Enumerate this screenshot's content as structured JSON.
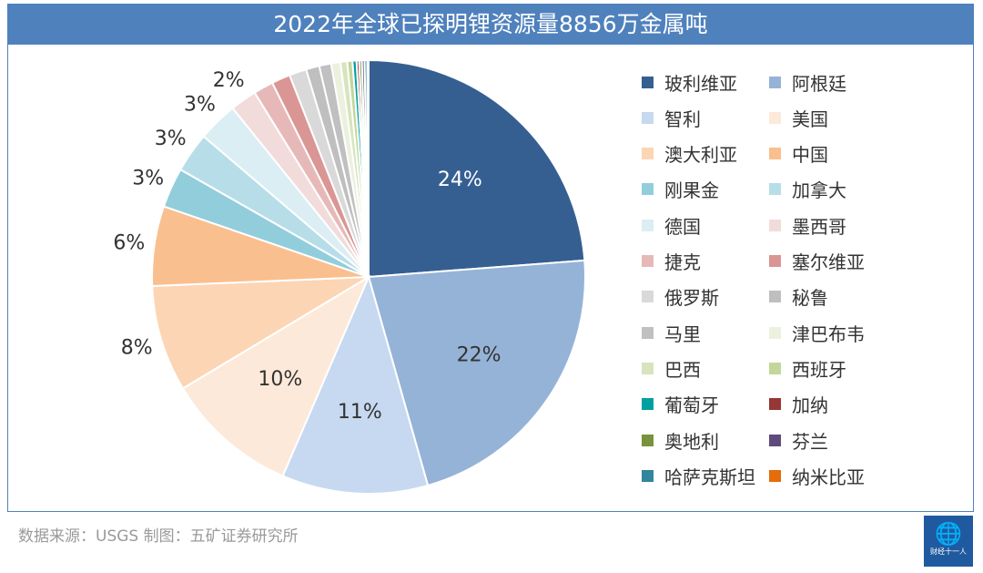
{
  "title": "2022年全球已探明锂资源量8856万金属吨",
  "source": "数据来源：USGS 制图：五矿证券研究所",
  "logo_text": "财经十一人",
  "chart_data": {
    "type": "pie",
    "title": "2022年全球已探明锂资源量8856万金属吨",
    "legend_position": "right",
    "slices": [
      {
        "name": "玻利维亚",
        "value": 24,
        "label": "24%",
        "color": "#355f91"
      },
      {
        "name": "阿根廷",
        "value": 22,
        "label": "22%",
        "color": "#95b3d7"
      },
      {
        "name": "智利",
        "value": 11,
        "label": "11%",
        "color": "#c6d9f0"
      },
      {
        "name": "美国",
        "value": 10,
        "label": "10%",
        "color": "#fde9d9"
      },
      {
        "name": "澳大利亚",
        "value": 8,
        "label": "8%",
        "color": "#fcd5b4"
      },
      {
        "name": "中国",
        "value": 6,
        "label": "6%",
        "color": "#fabf8f"
      },
      {
        "name": "刚果金",
        "value": 3,
        "label": "3%",
        "color": "#92cddc"
      },
      {
        "name": "加拿大",
        "value": 3,
        "label": "3%",
        "color": "#b7dee8"
      },
      {
        "name": "德国",
        "value": 3,
        "label": "3%",
        "color": "#daeef3"
      },
      {
        "name": "墨西哥",
        "value": 2,
        "label": "2%",
        "color": "#f2dcdb"
      },
      {
        "name": "捷克",
        "value": 1.5,
        "label": "",
        "color": "#e6b9b8"
      },
      {
        "name": "塞尔维亚",
        "value": 1.4,
        "label": "",
        "color": "#da9694"
      },
      {
        "name": "俄罗斯",
        "value": 1.3,
        "label": "",
        "color": "#d9d9d9"
      },
      {
        "name": "秘鲁",
        "value": 1.0,
        "label": "",
        "color": "#bfbfbf"
      },
      {
        "name": "马里",
        "value": 0.9,
        "label": "",
        "color": "#c0c0c0"
      },
      {
        "name": "津巴布韦",
        "value": 0.7,
        "label": "",
        "color": "#ebf1de"
      },
      {
        "name": "巴西",
        "value": 0.5,
        "label": "",
        "color": "#d7e4bd"
      },
      {
        "name": "西班牙",
        "value": 0.4,
        "label": "",
        "color": "#c3d69b"
      },
      {
        "name": "葡萄牙",
        "value": 0.3,
        "label": "",
        "color": "#00a0a0"
      },
      {
        "name": "加纳",
        "value": 0.2,
        "label": "",
        "color": "#953735"
      },
      {
        "name": "奥地利",
        "value": 0.2,
        "label": "",
        "color": "#77933c"
      },
      {
        "name": "芬兰",
        "value": 0.2,
        "label": "",
        "color": "#604a7b"
      },
      {
        "name": "哈萨克斯坦",
        "value": 0.2,
        "label": "",
        "color": "#31859c"
      },
      {
        "name": "纳米比亚",
        "value": 0.1,
        "label": "",
        "color": "#e46c0a"
      }
    ]
  }
}
